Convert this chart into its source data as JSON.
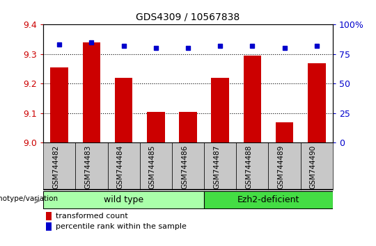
{
  "title": "GDS4309 / 10567838",
  "samples": [
    "GSM744482",
    "GSM744483",
    "GSM744484",
    "GSM744485",
    "GSM744486",
    "GSM744487",
    "GSM744488",
    "GSM744489",
    "GSM744490"
  ],
  "bar_values": [
    9.255,
    9.34,
    9.22,
    9.105,
    9.105,
    9.22,
    9.295,
    9.07,
    9.27
  ],
  "percentile_values": [
    83,
    85,
    82,
    80,
    80,
    82,
    82,
    80,
    82
  ],
  "ylim_left": [
    9.0,
    9.4
  ],
  "ylim_right": [
    0,
    100
  ],
  "yticks_left": [
    9.0,
    9.1,
    9.2,
    9.3,
    9.4
  ],
  "yticks_right": [
    0,
    25,
    50,
    75,
    100
  ],
  "bar_color": "#cc0000",
  "scatter_color": "#0000cc",
  "grid_color": "#000000",
  "tick_color_left": "#cc0000",
  "tick_color_right": "#0000cc",
  "bg_color": "#ffffff",
  "xticklabel_bg": "#c8c8c8",
  "wild_type_indices": [
    0,
    1,
    2,
    3,
    4
  ],
  "ezh2_indices": [
    5,
    6,
    7,
    8
  ],
  "wild_type_label": "wild type",
  "ezh2_label": "Ezh2-deficient",
  "genotype_label": "genotype/variation",
  "legend_bar_label": "transformed count",
  "legend_scatter_label": "percentile rank within the sample",
  "wild_type_color": "#aaffaa",
  "ezh2_color": "#44dd44",
  "bar_width": 0.55,
  "fig_width": 5.4,
  "fig_height": 3.54,
  "dpi": 100
}
